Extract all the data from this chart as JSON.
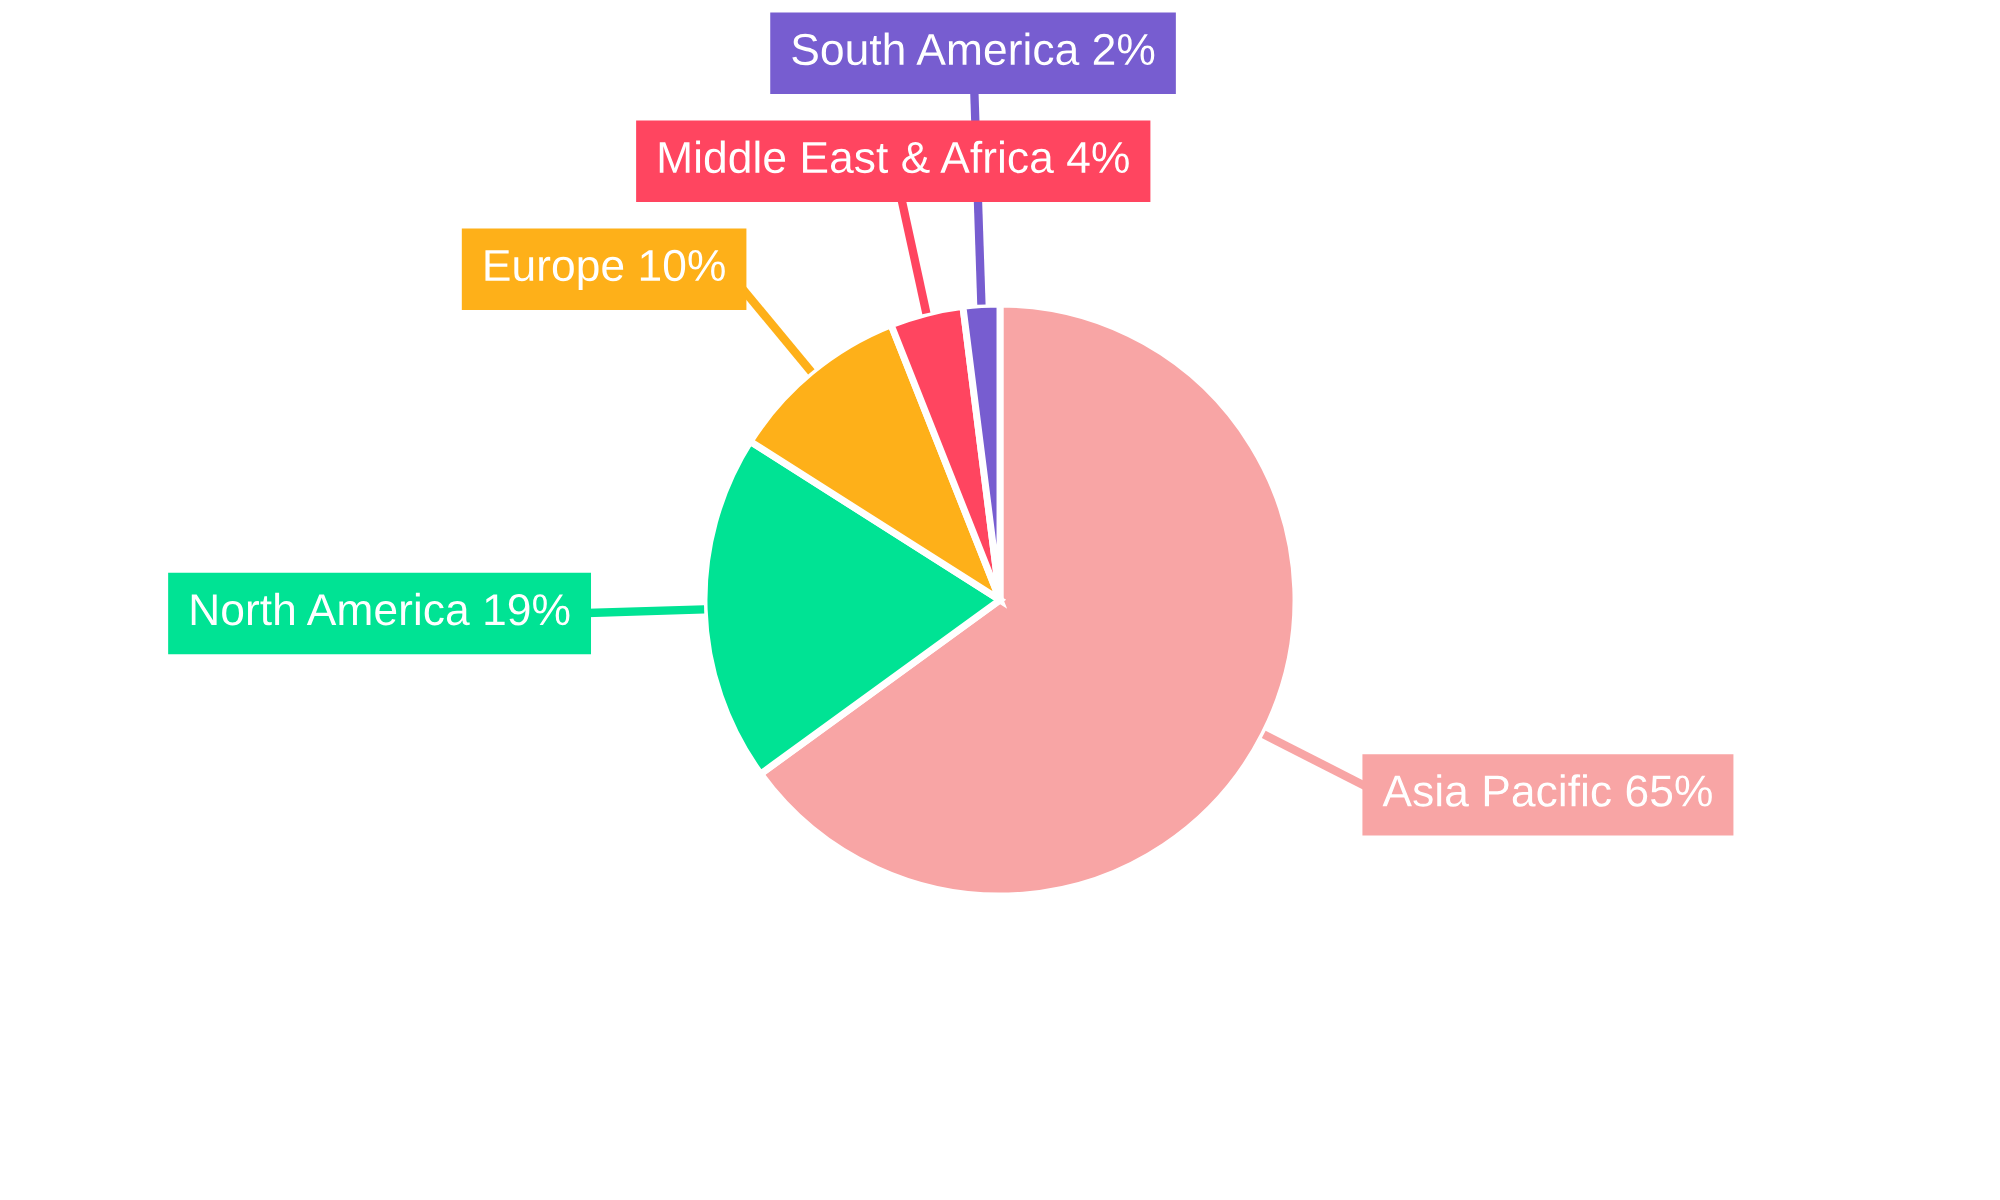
{
  "chart_data": {
    "type": "pie",
    "categories": [
      "Asia Pacific",
      "North America",
      "Europe",
      "Middle East & Africa",
      "South America"
    ],
    "values": [
      65,
      19,
      10,
      4,
      2
    ],
    "colors": [
      "#f8a5a5",
      "#00e394",
      "#feb019",
      "#ff4560",
      "#775dd0"
    ],
    "value_labels": [
      "65%",
      "19%",
      "10%",
      "4%",
      "2%"
    ],
    "legend": false
  }
}
